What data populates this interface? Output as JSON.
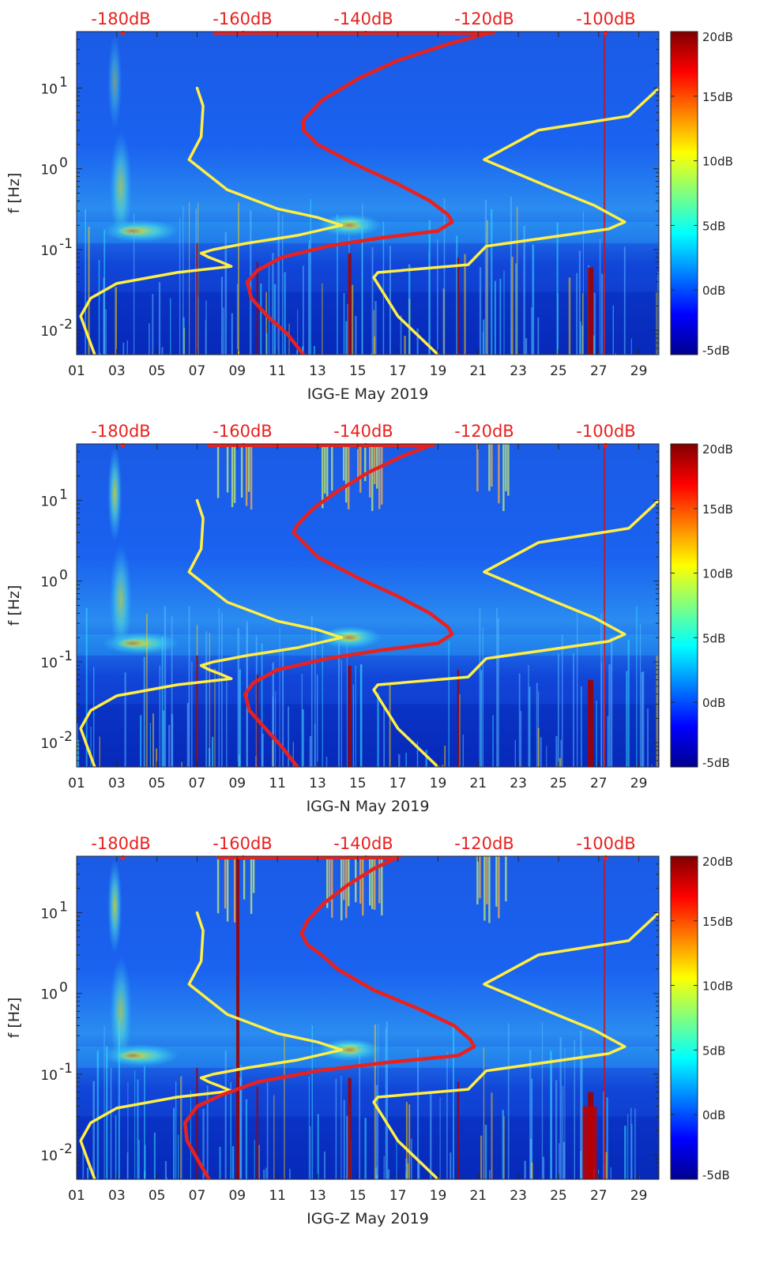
{
  "figure": {
    "colormap": [
      "#00008f",
      "#0000ff",
      "#0080ff",
      "#00ffff",
      "#80ff80",
      "#ffff00",
      "#ff8000",
      "#ff0000",
      "#800000"
    ],
    "curve_colors": {
      "noise_model": "#ffee44",
      "sensor": "#e8211f"
    }
  },
  "chart_data": [
    {
      "type": "heatmap",
      "xlabel": "IGG-E May 2019",
      "ylabel": "f [Hz]",
      "x_ticks": [
        "01",
        "03",
        "05",
        "07",
        "09",
        "11",
        "13",
        "15",
        "17",
        "19",
        "21",
        "23",
        "25",
        "27",
        "29"
      ],
      "xlim": [
        1,
        30
      ],
      "y_scale": "log",
      "ylim": [
        0.005,
        50
      ],
      "y_ticks": [
        {
          "label": "10",
          "exp": "-2",
          "value": 0.01
        },
        {
          "label": "10",
          "exp": "-1",
          "value": 0.1
        },
        {
          "label": "10",
          "exp": "0",
          "value": 1
        },
        {
          "label": "10",
          "exp": "1",
          "value": 10
        }
      ],
      "top_axis_ticks": [
        "-180dB",
        "-160dB",
        "-140dB",
        "-120dB",
        "-100dB"
      ],
      "colorbar": {
        "range": [
          -5,
          20
        ],
        "ticks": [
          "20dB",
          "15dB",
          "10dB",
          "5dB",
          "0dB",
          "-5dB"
        ]
      },
      "series": [
        {
          "color": "yellow",
          "points": [
            [
              7.0,
              10
            ],
            [
              7.3,
              6
            ],
            [
              7.2,
              2.5
            ],
            [
              6.6,
              1.3
            ],
            [
              8.5,
              0.55
            ],
            [
              11,
              0.32
            ],
            [
              13,
              0.25
            ],
            [
              14.2,
              0.2
            ],
            [
              12,
              0.15
            ],
            [
              9.5,
              0.12
            ],
            [
              7.8,
              0.1
            ],
            [
              7.2,
              0.09
            ],
            [
              7.6,
              0.08
            ],
            [
              8.2,
              0.07
            ],
            [
              8.7,
              0.062
            ],
            [
              6,
              0.052
            ],
            [
              3,
              0.038
            ],
            [
              1.7,
              0.025
            ],
            [
              1.2,
              0.015
            ],
            [
              1.6,
              0.008
            ],
            [
              1.9,
              0.005
            ]
          ]
        },
        {
          "color": "yellow",
          "points": [
            [
              30,
              10
            ],
            [
              28.5,
              4.5
            ],
            [
              24,
              3
            ],
            [
              21.3,
              1.3
            ],
            [
              24.5,
              0.6
            ],
            [
              26.8,
              0.35
            ],
            [
              28.3,
              0.22
            ],
            [
              27.5,
              0.18
            ],
            [
              21.4,
              0.11
            ],
            [
              20.5,
              0.065
            ],
            [
              16,
              0.052
            ],
            [
              15.8,
              0.045
            ],
            [
              17,
              0.015
            ],
            [
              19,
              0.005
            ]
          ]
        },
        {
          "color": "red",
          "points": [
            [
              21.8,
              50
            ],
            [
              19.5,
              35
            ],
            [
              17,
              22
            ],
            [
              15,
              13
            ],
            [
              13.2,
              7
            ],
            [
              12.3,
              4
            ],
            [
              12.3,
              3
            ],
            [
              13,
              2
            ],
            [
              15,
              1.1
            ],
            [
              17,
              0.65
            ],
            [
              18.6,
              0.4
            ],
            [
              19.5,
              0.27
            ],
            [
              19.7,
              0.22
            ],
            [
              19,
              0.17
            ],
            [
              16.2,
              0.14
            ],
            [
              13.5,
              0.11
            ],
            [
              11.2,
              0.08
            ],
            [
              10,
              0.055
            ],
            [
              9.5,
              0.04
            ],
            [
              9.7,
              0.025
            ],
            [
              10.5,
              0.015
            ],
            [
              11.5,
              0.009
            ],
            [
              12.3,
              0.005
            ]
          ]
        }
      ]
    },
    {
      "type": "heatmap",
      "xlabel": "IGG-N May 2019",
      "ylabel": "f [Hz]",
      "x_ticks": [
        "01",
        "03",
        "05",
        "07",
        "09",
        "11",
        "13",
        "15",
        "17",
        "19",
        "21",
        "23",
        "25",
        "27",
        "29"
      ],
      "xlim": [
        1,
        30
      ],
      "y_scale": "log",
      "ylim": [
        0.005,
        50
      ],
      "y_ticks": [
        {
          "label": "10",
          "exp": "-2",
          "value": 0.01
        },
        {
          "label": "10",
          "exp": "-1",
          "value": 0.1
        },
        {
          "label": "10",
          "exp": "0",
          "value": 1
        },
        {
          "label": "10",
          "exp": "1",
          "value": 10
        }
      ],
      "top_axis_ticks": [
        "-180dB",
        "-160dB",
        "-140dB",
        "-120dB",
        "-100dB"
      ],
      "colorbar": {
        "range": [
          -5,
          20
        ],
        "ticks": [
          "20dB",
          "15dB",
          "10dB",
          "5dB",
          "0dB",
          "-5dB"
        ]
      },
      "series": [
        {
          "color": "yellow",
          "points": [
            [
              7.0,
              10
            ],
            [
              7.3,
              6
            ],
            [
              7.2,
              2.5
            ],
            [
              6.6,
              1.3
            ],
            [
              8.5,
              0.55
            ],
            [
              11,
              0.32
            ],
            [
              13,
              0.25
            ],
            [
              14.2,
              0.2
            ],
            [
              12,
              0.15
            ],
            [
              9.5,
              0.12
            ],
            [
              7.8,
              0.1
            ],
            [
              7.2,
              0.09
            ],
            [
              7.6,
              0.08
            ],
            [
              8.2,
              0.07
            ],
            [
              8.7,
              0.062
            ],
            [
              6,
              0.052
            ],
            [
              3,
              0.038
            ],
            [
              1.7,
              0.025
            ],
            [
              1.2,
              0.015
            ],
            [
              1.6,
              0.008
            ],
            [
              1.9,
              0.005
            ]
          ]
        },
        {
          "color": "yellow",
          "points": [
            [
              30,
              10
            ],
            [
              28.5,
              4.5
            ],
            [
              24,
              3
            ],
            [
              21.3,
              1.3
            ],
            [
              24.5,
              0.6
            ],
            [
              26.8,
              0.35
            ],
            [
              28.3,
              0.22
            ],
            [
              27.5,
              0.18
            ],
            [
              21.4,
              0.11
            ],
            [
              20.5,
              0.065
            ],
            [
              16,
              0.052
            ],
            [
              15.8,
              0.045
            ],
            [
              17,
              0.015
            ],
            [
              19,
              0.005
            ]
          ]
        },
        {
          "color": "red",
          "points": [
            [
              18.8,
              50
            ],
            [
              17.2,
              35
            ],
            [
              15.5,
              22
            ],
            [
              14,
              13
            ],
            [
              12.8,
              8
            ],
            [
              12,
              5
            ],
            [
              11.8,
              4
            ],
            [
              12.3,
              3
            ],
            [
              13,
              2
            ],
            [
              15,
              1.1
            ],
            [
              17,
              0.65
            ],
            [
              18.6,
              0.4
            ],
            [
              19.5,
              0.27
            ],
            [
              19.7,
              0.22
            ],
            [
              19,
              0.17
            ],
            [
              16.2,
              0.14
            ],
            [
              13.5,
              0.11
            ],
            [
              11,
              0.08
            ],
            [
              9.8,
              0.055
            ],
            [
              9.4,
              0.04
            ],
            [
              9.6,
              0.025
            ],
            [
              10.4,
              0.015
            ],
            [
              11.2,
              0.009
            ],
            [
              12,
              0.005
            ]
          ]
        }
      ]
    },
    {
      "type": "heatmap",
      "xlabel": "IGG-Z May 2019",
      "ylabel": "f [Hz]",
      "x_ticks": [
        "01",
        "03",
        "05",
        "07",
        "09",
        "11",
        "13",
        "15",
        "17",
        "19",
        "21",
        "23",
        "25",
        "27",
        "29"
      ],
      "xlim": [
        1,
        30
      ],
      "y_scale": "log",
      "ylim": [
        0.005,
        50
      ],
      "y_ticks": [
        {
          "label": "10",
          "exp": "-2",
          "value": 0.01
        },
        {
          "label": "10",
          "exp": "-1",
          "value": 0.1
        },
        {
          "label": "10",
          "exp": "0",
          "value": 1
        },
        {
          "label": "10",
          "exp": "1",
          "value": 10
        }
      ],
      "top_axis_ticks": [
        "-180dB",
        "-160dB",
        "-140dB",
        "-120dB",
        "-100dB"
      ],
      "colorbar": {
        "range": [
          -5,
          20
        ],
        "ticks": [
          "20dB",
          "15dB",
          "10dB",
          "5dB",
          "0dB",
          "-5dB"
        ]
      },
      "series": [
        {
          "color": "yellow",
          "points": [
            [
              7.0,
              10
            ],
            [
              7.3,
              6
            ],
            [
              7.2,
              2.5
            ],
            [
              6.6,
              1.3
            ],
            [
              8.5,
              0.55
            ],
            [
              11,
              0.32
            ],
            [
              13,
              0.25
            ],
            [
              14.2,
              0.2
            ],
            [
              12,
              0.15
            ],
            [
              9.5,
              0.12
            ],
            [
              7.8,
              0.1
            ],
            [
              7.2,
              0.09
            ],
            [
              7.6,
              0.08
            ],
            [
              8.2,
              0.07
            ],
            [
              8.7,
              0.062
            ],
            [
              6,
              0.052
            ],
            [
              3,
              0.038
            ],
            [
              1.7,
              0.025
            ],
            [
              1.2,
              0.015
            ],
            [
              1.6,
              0.008
            ],
            [
              1.9,
              0.005
            ]
          ]
        },
        {
          "color": "yellow",
          "points": [
            [
              30,
              10
            ],
            [
              28.5,
              4.5
            ],
            [
              24,
              3
            ],
            [
              21.3,
              1.3
            ],
            [
              24.5,
              0.6
            ],
            [
              26.8,
              0.35
            ],
            [
              28.3,
              0.22
            ],
            [
              27.5,
              0.18
            ],
            [
              21.4,
              0.11
            ],
            [
              20.5,
              0.065
            ],
            [
              16,
              0.052
            ],
            [
              15.8,
              0.045
            ],
            [
              17,
              0.015
            ],
            [
              19,
              0.005
            ]
          ]
        },
        {
          "color": "red",
          "points": [
            [
              17.1,
              50
            ],
            [
              15.8,
              35
            ],
            [
              14.5,
              22
            ],
            [
              13.3,
              13
            ],
            [
              12.5,
              8
            ],
            [
              12.2,
              5.5
            ],
            [
              12.5,
              4
            ],
            [
              13.2,
              3
            ],
            [
              14,
              2
            ],
            [
              15.8,
              1.1
            ],
            [
              18,
              0.65
            ],
            [
              19.8,
              0.4
            ],
            [
              20.6,
              0.27
            ],
            [
              20.8,
              0.22
            ],
            [
              20,
              0.17
            ],
            [
              16.5,
              0.14
            ],
            [
              13,
              0.11
            ],
            [
              10,
              0.08
            ],
            [
              8.2,
              0.055
            ],
            [
              7,
              0.04
            ],
            [
              6.4,
              0.025
            ],
            [
              6.5,
              0.015
            ],
            [
              7,
              0.009
            ],
            [
              7.6,
              0.005
            ]
          ]
        }
      ]
    }
  ]
}
